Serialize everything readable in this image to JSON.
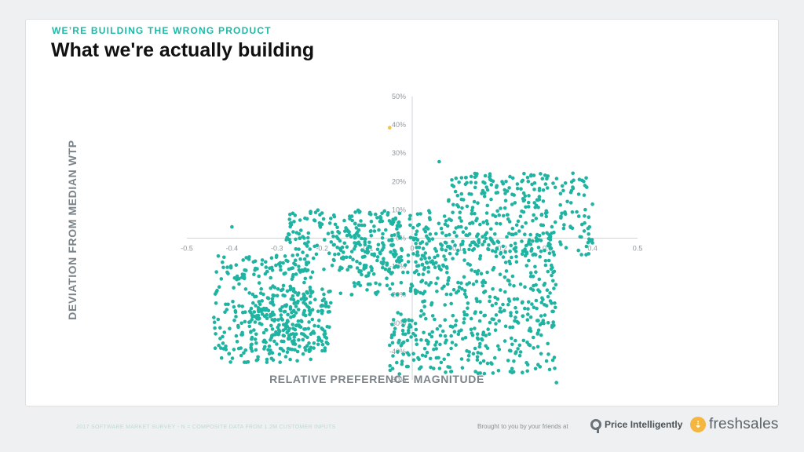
{
  "slide": {
    "kicker": "WE’RE BUILDING THE WRONG PRODUCT",
    "title": "What we're actually building"
  },
  "footer": {
    "note": "2017 SOFTWARE MARKET SURVEY - N = COMPOSITE DATA FROM 1.2M CUSTOMER INPUTS",
    "credit": "Brought to you by your friends at",
    "brand_1": "Price Intelligently",
    "brand_2": "freshsales",
    "brand_2_icon": "freshsales-icon"
  },
  "colors": {
    "dot": "#1fb3a2",
    "highlight_dot": "#f5c242",
    "axis": "#cfd6d9",
    "accent": "#1fb8a6"
  },
  "chart_data": {
    "type": "scatter",
    "title": "",
    "xlabel": "RELATIVE PREFERENCE MAGNITUDE",
    "ylabel": "DEVIATION FROM MEDIAN WTP",
    "xlim": [
      -0.5,
      0.5
    ],
    "ylim": [
      -50,
      50
    ],
    "x_ticks": [
      "-0.5",
      "-0.4",
      "-0.3",
      "-0.2",
      "-0.1",
      "0",
      "0.1",
      "0.2",
      "0.3",
      "0.4",
      "0.5"
    ],
    "y_ticks": [
      "50%",
      "40%",
      "30%",
      "20%",
      "10%",
      "0%",
      "-10%",
      "-20%",
      "-30%",
      "-40%",
      "-50%"
    ],
    "grid": false,
    "highlight_points": [
      {
        "x": -0.05,
        "y": 39
      }
    ],
    "outlier_points": [
      {
        "x": -0.4,
        "y": 4
      },
      {
        "x": 0.06,
        "y": 27
      },
      {
        "x": 0.4,
        "y": 12
      },
      {
        "x": 0.32,
        "y": -51
      },
      {
        "x": -0.44,
        "y": -28
      }
    ],
    "series": [
      {
        "clusters": [
          {
            "x_range": [
              -0.44,
              -0.22
            ],
            "y_range": [
              -44,
              -6
            ],
            "count": 260
          },
          {
            "x_range": [
              -0.36,
              -0.18
            ],
            "y_range": [
              -40,
              -18
            ],
            "count": 200
          },
          {
            "x_range": [
              -0.28,
              -0.02
            ],
            "y_range": [
              -12,
              10
            ],
            "count": 220
          },
          {
            "x_range": [
              -0.16,
              0.08
            ],
            "y_range": [
              -20,
              10
            ],
            "count": 180
          },
          {
            "x_range": [
              -0.05,
              0.32
            ],
            "y_range": [
              -48,
              -26
            ],
            "count": 260
          },
          {
            "x_range": [
              0.0,
              0.32
            ],
            "y_range": [
              -26,
              2
            ],
            "count": 240
          },
          {
            "x_range": [
              0.08,
              0.4
            ],
            "y_range": [
              -6,
              23
            ],
            "count": 300
          }
        ]
      }
    ]
  }
}
